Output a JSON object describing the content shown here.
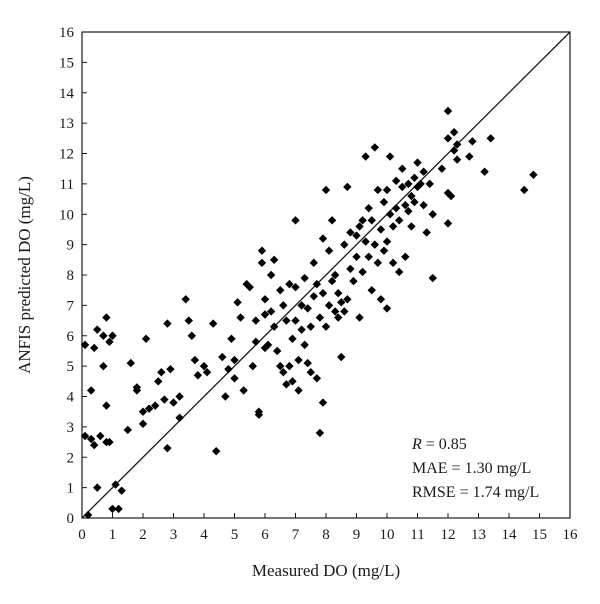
{
  "chart_data": {
    "type": "scatter",
    "xlabel": "Measured DO (mg/L)",
    "ylabel": "ANFIS predicted DO (mg/L)",
    "xlim": [
      0,
      16
    ],
    "ylim": [
      0,
      16
    ],
    "x_ticks": [
      "0",
      "1",
      "2",
      "3",
      "4",
      "5",
      "6",
      "7",
      "8",
      "9",
      "10",
      "11",
      "12",
      "13",
      "14",
      "15",
      "16"
    ],
    "y_ticks": [
      "0",
      "1",
      "2",
      "3",
      "4",
      "5",
      "6",
      "7",
      "8",
      "9",
      "10",
      "11",
      "12",
      "13",
      "14",
      "15",
      "16"
    ],
    "grid": false,
    "marker": "diamond",
    "marker_color": "#000000",
    "reference_line": {
      "from": [
        0,
        0
      ],
      "to": [
        16,
        16
      ],
      "label": ""
    },
    "stats": {
      "r_label": "R",
      "r_value": " = 0.85",
      "mae": "MAE = 1.30 mg/L",
      "rmse": "RMSE = 1.74 mg/L"
    },
    "series": [
      {
        "points": [
          [
            0.1,
            5.7
          ],
          [
            0.1,
            2.7
          ],
          [
            0.2,
            0.1
          ],
          [
            0.3,
            4.2
          ],
          [
            0.3,
            2.6
          ],
          [
            0.4,
            5.6
          ],
          [
            0.5,
            6.2
          ],
          [
            0.4,
            2.4
          ],
          [
            0.5,
            1.0
          ],
          [
            0.6,
            2.7
          ],
          [
            0.7,
            6.0
          ],
          [
            0.7,
            5.0
          ],
          [
            0.8,
            6.6
          ],
          [
            0.8,
            2.5
          ],
          [
            0.9,
            5.8
          ],
          [
            0.8,
            3.7
          ],
          [
            0.9,
            2.5
          ],
          [
            1.0,
            6.0
          ],
          [
            1.0,
            0.3
          ],
          [
            1.1,
            1.1
          ],
          [
            1.2,
            0.3
          ],
          [
            1.3,
            0.9
          ],
          [
            1.5,
            2.9
          ],
          [
            1.6,
            5.1
          ],
          [
            1.8,
            4.3
          ],
          [
            1.8,
            4.2
          ],
          [
            2.0,
            3.5
          ],
          [
            2.0,
            3.1
          ],
          [
            2.1,
            5.9
          ],
          [
            2.2,
            3.6
          ],
          [
            2.4,
            3.7
          ],
          [
            2.5,
            4.5
          ],
          [
            2.6,
            4.8
          ],
          [
            2.7,
            3.9
          ],
          [
            2.8,
            6.4
          ],
          [
            2.8,
            2.3
          ],
          [
            2.9,
            4.9
          ],
          [
            3.0,
            3.8
          ],
          [
            3.2,
            4.0
          ],
          [
            3.2,
            3.3
          ],
          [
            3.4,
            7.2
          ],
          [
            3.5,
            6.5
          ],
          [
            3.6,
            6.0
          ],
          [
            3.7,
            5.2
          ],
          [
            3.8,
            4.7
          ],
          [
            4.0,
            5.0
          ],
          [
            4.1,
            4.8
          ],
          [
            4.3,
            6.4
          ],
          [
            4.4,
            2.2
          ],
          [
            4.6,
            5.3
          ],
          [
            4.7,
            4.0
          ],
          [
            4.8,
            4.9
          ],
          [
            4.9,
            5.9
          ],
          [
            5.0,
            5.2
          ],
          [
            5.0,
            4.6
          ],
          [
            5.1,
            7.1
          ],
          [
            5.2,
            6.6
          ],
          [
            5.3,
            4.2
          ],
          [
            5.4,
            7.7
          ],
          [
            5.5,
            7.6
          ],
          [
            5.6,
            5.0
          ],
          [
            5.7,
            6.5
          ],
          [
            5.7,
            5.8
          ],
          [
            5.8,
            3.5
          ],
          [
            5.8,
            3.4
          ],
          [
            5.9,
            8.8
          ],
          [
            5.9,
            8.4
          ],
          [
            6.0,
            7.2
          ],
          [
            6.0,
            6.7
          ],
          [
            6.0,
            5.6
          ],
          [
            6.1,
            5.7
          ],
          [
            6.2,
            8.0
          ],
          [
            6.2,
            6.8
          ],
          [
            6.3,
            8.5
          ],
          [
            6.3,
            6.3
          ],
          [
            6.4,
            5.5
          ],
          [
            6.5,
            5.0
          ],
          [
            6.5,
            7.5
          ],
          [
            6.6,
            7.0
          ],
          [
            6.6,
            4.8
          ],
          [
            6.7,
            6.5
          ],
          [
            6.7,
            4.4
          ],
          [
            6.8,
            7.7
          ],
          [
            6.8,
            5.0
          ],
          [
            6.9,
            5.9
          ],
          [
            6.9,
            4.5
          ],
          [
            7.0,
            9.8
          ],
          [
            7.0,
            7.6
          ],
          [
            7.0,
            6.5
          ],
          [
            7.1,
            4.2
          ],
          [
            7.1,
            5.2
          ],
          [
            7.2,
            6.2
          ],
          [
            7.2,
            7.0
          ],
          [
            7.3,
            7.9
          ],
          [
            7.3,
            5.7
          ],
          [
            7.4,
            6.9
          ],
          [
            7.4,
            5.1
          ],
          [
            7.5,
            4.8
          ],
          [
            7.5,
            6.3
          ],
          [
            7.6,
            7.3
          ],
          [
            7.6,
            8.4
          ],
          [
            7.7,
            4.6
          ],
          [
            7.7,
            7.7
          ],
          [
            7.8,
            6.6
          ],
          [
            7.8,
            2.8
          ],
          [
            7.9,
            3.8
          ],
          [
            7.9,
            9.2
          ],
          [
            7.9,
            7.4
          ],
          [
            8.0,
            10.8
          ],
          [
            8.0,
            6.3
          ],
          [
            8.1,
            8.8
          ],
          [
            8.1,
            7.0
          ],
          [
            8.2,
            9.8
          ],
          [
            8.2,
            7.8
          ],
          [
            8.3,
            6.8
          ],
          [
            8.3,
            8.0
          ],
          [
            8.4,
            6.6
          ],
          [
            8.4,
            7.4
          ],
          [
            8.5,
            5.3
          ],
          [
            8.5,
            7.1
          ],
          [
            8.6,
            9.0
          ],
          [
            8.6,
            6.8
          ],
          [
            8.7,
            10.9
          ],
          [
            8.7,
            7.2
          ],
          [
            8.8,
            9.4
          ],
          [
            8.8,
            8.2
          ],
          [
            8.9,
            7.8
          ],
          [
            9.0,
            9.3
          ],
          [
            9.0,
            8.6
          ],
          [
            9.1,
            9.6
          ],
          [
            9.1,
            6.6
          ],
          [
            9.2,
            8.1
          ],
          [
            9.2,
            9.8
          ],
          [
            9.3,
            9.1
          ],
          [
            9.3,
            11.9
          ],
          [
            9.4,
            10.2
          ],
          [
            9.4,
            8.6
          ],
          [
            9.5,
            9.8
          ],
          [
            9.5,
            7.5
          ],
          [
            9.6,
            9.0
          ],
          [
            9.6,
            12.2
          ],
          [
            9.7,
            8.4
          ],
          [
            9.7,
            10.8
          ],
          [
            9.8,
            9.5
          ],
          [
            9.8,
            7.2
          ],
          [
            9.9,
            10.4
          ],
          [
            9.9,
            8.8
          ],
          [
            10.0,
            10.8
          ],
          [
            10.0,
            9.1
          ],
          [
            10.0,
            6.9
          ],
          [
            10.1,
            11.9
          ],
          [
            10.1,
            10.0
          ],
          [
            10.2,
            8.4
          ],
          [
            10.2,
            9.6
          ],
          [
            10.3,
            10.2
          ],
          [
            10.3,
            11.1
          ],
          [
            10.4,
            9.8
          ],
          [
            10.4,
            8.1
          ],
          [
            10.5,
            10.9
          ],
          [
            10.5,
            11.5
          ],
          [
            10.6,
            10.3
          ],
          [
            10.6,
            8.6
          ],
          [
            10.7,
            11.0
          ],
          [
            10.7,
            10.1
          ],
          [
            10.8,
            10.6
          ],
          [
            10.8,
            9.6
          ],
          [
            10.9,
            11.2
          ],
          [
            10.9,
            10.4
          ],
          [
            11.0,
            11.7
          ],
          [
            11.0,
            10.9
          ],
          [
            11.1,
            11.0
          ],
          [
            11.2,
            10.3
          ],
          [
            11.2,
            11.4
          ],
          [
            11.3,
            9.4
          ],
          [
            11.4,
            11.0
          ],
          [
            11.5,
            7.9
          ],
          [
            11.5,
            10.0
          ],
          [
            11.8,
            11.5
          ],
          [
            12.0,
            13.4
          ],
          [
            12.0,
            12.5
          ],
          [
            12.0,
            10.7
          ],
          [
            12.0,
            9.7
          ],
          [
            12.1,
            10.6
          ],
          [
            12.2,
            12.7
          ],
          [
            12.2,
            12.1
          ],
          [
            12.3,
            11.8
          ],
          [
            12.3,
            12.3
          ],
          [
            12.7,
            11.9
          ],
          [
            12.8,
            12.4
          ],
          [
            13.2,
            11.4
          ],
          [
            13.4,
            12.5
          ],
          [
            14.5,
            10.8
          ],
          [
            14.8,
            11.3
          ]
        ]
      }
    ]
  }
}
